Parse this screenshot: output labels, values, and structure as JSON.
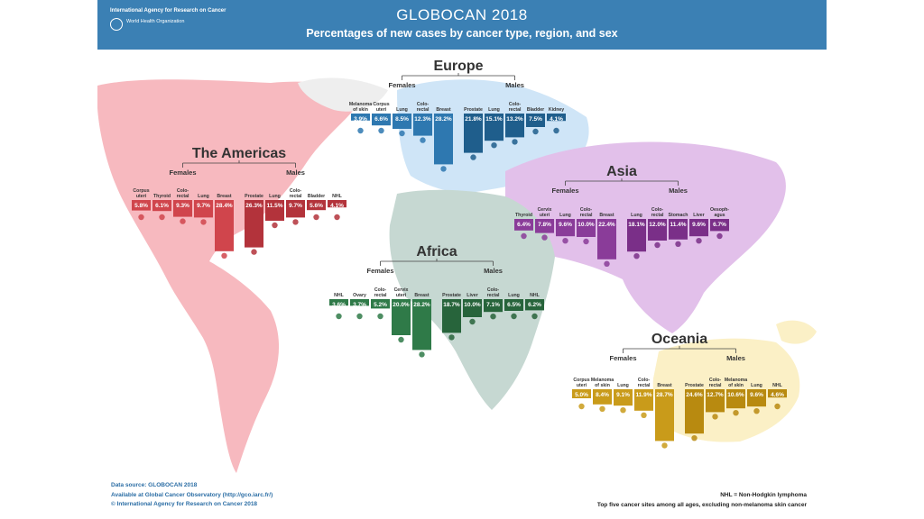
{
  "header": {
    "agency": "International Agency for Research on Cancer",
    "who_name": "World Health Organization",
    "title": "GLOBOCAN 2018",
    "subtitle": "Percentages of new cases by cancer type, region, and sex"
  },
  "footer": {
    "line1": "Data source: GLOBOCAN 2018",
    "line2": "Available at Global Cancer Observatory (http://gco.iarc.fr/)",
    "line3": "© International Agency for Research on Cancer 2018",
    "note1": "NHL = Non-Hodgkin lymphoma",
    "note2": "Top five cancer sites among all ages, excluding non-melanoma skin cancer"
  },
  "chart_data": [
    {
      "type": "bar",
      "title": "Europe",
      "colors": {
        "females": "#2e78b0",
        "males": "#1f5e8c",
        "map": "#cfe5f7"
      },
      "females": {
        "label": "Females",
        "categories": [
          "Melanoma of skin",
          "Corpus uteri",
          "Lung",
          "Colo-rectal",
          "Breast"
        ],
        "values": [
          3.9,
          6.6,
          8.5,
          12.3,
          28.2
        ]
      },
      "males": {
        "label": "Males",
        "categories": [
          "Prostate",
          "Lung",
          "Colo-rectal",
          "Bladder",
          "Kidney"
        ],
        "values": [
          21.8,
          15.1,
          13.2,
          7.5,
          4.1
        ]
      }
    },
    {
      "type": "bar",
      "title": "The Americas",
      "colors": {
        "females": "#d0454c",
        "males": "#b3333b",
        "map": "#f7b9bf"
      },
      "females": {
        "label": "Females",
        "categories": [
          "Corpus uteri",
          "Thyroid",
          "Colo-rectal",
          "Lung",
          "Breast"
        ],
        "values": [
          5.8,
          6.1,
          9.3,
          9.7,
          28.4
        ]
      },
      "males": {
        "label": "Males",
        "categories": [
          "Prostate",
          "Lung",
          "Colo-rectal",
          "Bladder",
          "NHL"
        ],
        "values": [
          26.3,
          11.5,
          9.7,
          5.6,
          4.1
        ]
      }
    },
    {
      "type": "bar",
      "title": "Asia",
      "colors": {
        "females": "#8a3c99",
        "males": "#7a2f88",
        "map": "#e2c0ea"
      },
      "females": {
        "label": "Females",
        "categories": [
          "Thyroid",
          "Cervix uteri",
          "Lung",
          "Colo-rectal",
          "Breast"
        ],
        "values": [
          6.4,
          7.8,
          9.6,
          10.0,
          22.4
        ]
      },
      "males": {
        "label": "Males",
        "categories": [
          "Lung",
          "Colo-rectal",
          "Stomach",
          "Liver",
          "Oesoph-agus"
        ],
        "values": [
          18.1,
          12.0,
          11.4,
          9.6,
          6.7
        ]
      }
    },
    {
      "type": "bar",
      "title": "Africa",
      "colors": {
        "females": "#2f7a48",
        "males": "#27643b",
        "map": "#c6d8d2"
      },
      "females": {
        "label": "Females",
        "categories": [
          "NHL",
          "Ovary",
          "Colo-rectal",
          "Cervix uteri",
          "Breast"
        ],
        "values": [
          3.6,
          3.7,
          5.2,
          20.0,
          28.2
        ]
      },
      "males": {
        "label": "Males",
        "categories": [
          "Prostate",
          "Liver",
          "Colo-rectal",
          "Lung",
          "NHL"
        ],
        "values": [
          18.7,
          10.0,
          7.1,
          6.5,
          6.2
        ]
      }
    },
    {
      "type": "bar",
      "title": "Oceania",
      "colors": {
        "females": "#c99b1a",
        "males": "#b88a10",
        "map": "#fbf0c6"
      },
      "females": {
        "label": "Females",
        "categories": [
          "Corpus uteri",
          "Melanoma of skin",
          "Lung",
          "Colo-rectal",
          "Breast"
        ],
        "values": [
          5.0,
          8.4,
          9.1,
          11.9,
          28.7
        ]
      },
      "males": {
        "label": "Males",
        "categories": [
          "Prostate",
          "Colo-rectal",
          "Melanoma of skin",
          "Lung",
          "NHL"
        ],
        "values": [
          24.6,
          12.7,
          10.6,
          9.6,
          4.6
        ]
      }
    }
  ]
}
